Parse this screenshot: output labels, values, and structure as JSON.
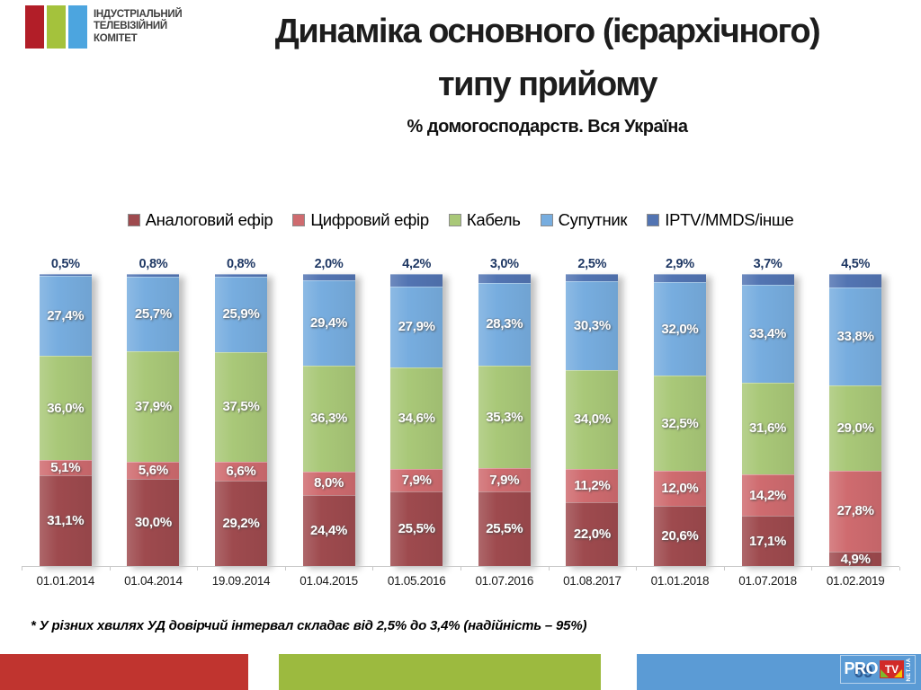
{
  "header": {
    "logo": {
      "text_lines": [
        "ІНДУСТРІАЛЬНИЙ",
        "ТЕЛЕВІЗІЙНИЙ",
        "КОМІТЕТ"
      ],
      "bar_colors": [
        "#B21E28",
        "#A4C23C",
        "#4CA5DF"
      ]
    },
    "title_line1": "Динаміка основного (ієрархічного)",
    "title_line2": "типу прийому",
    "subtitle": "% домогосподарств. Вся Україна"
  },
  "chart_data": {
    "type": "bar",
    "variant": "stacked-100",
    "title": "Динаміка основного (ієрархічного) типу прийому",
    "subtitle": "% домогосподарств. Вся Україна",
    "categories": [
      "01.01.2014",
      "01.04.2014",
      "19.09.2014",
      "01.04.2015",
      "01.05.2016",
      "01.07.2016",
      "01.08.2017",
      "01.01.2018",
      "01.07.2018",
      "01.02.2019"
    ],
    "series": [
      {
        "name": "Аналоговий ефір",
        "color": "#9E4A4E",
        "values": [
          31.1,
          30.0,
          29.2,
          24.4,
          25.5,
          25.5,
          22.0,
          20.6,
          17.1,
          4.9
        ]
      },
      {
        "name": "Цифровий ефір",
        "color": "#CF6B6F",
        "values": [
          5.1,
          5.6,
          6.6,
          8.0,
          7.9,
          7.9,
          11.2,
          12.0,
          14.2,
          27.8
        ]
      },
      {
        "name": "Кабель",
        "color": "#A9C878",
        "values": [
          36.0,
          37.9,
          37.5,
          36.3,
          34.6,
          35.3,
          34.0,
          32.5,
          31.6,
          29.0
        ]
      },
      {
        "name": "Супутник",
        "color": "#77ADDF",
        "values": [
          27.4,
          25.7,
          25.9,
          29.4,
          27.9,
          28.3,
          30.3,
          32.0,
          33.4,
          33.8
        ]
      },
      {
        "name": "IPTV/MMDS/інше",
        "color": "#5274B2",
        "values": [
          0.5,
          0.8,
          0.8,
          2.0,
          4.2,
          3.0,
          2.5,
          2.9,
          3.7,
          4.5
        ]
      }
    ],
    "stack_total": 100,
    "value_suffix": "%",
    "decimal_separator": ",",
    "top_labels_series": "IPTV/MMDS/інше",
    "label_color_inside": "#FFFFFF",
    "label_color_top": "#1F3864",
    "legend_position": "top",
    "grid": false
  },
  "footnote": "* У різних хвилях УД довірчий інтервал складає від 2,5% до 3,4% (надійність – 95%)",
  "footer": {
    "strip_colors": [
      "#C0342F",
      "#9CBA3F",
      "#5B9BD5"
    ],
    "page_number": "69",
    "logo": {
      "pro": "PRO",
      "tv": "TV",
      "domain": "NET.UA"
    }
  }
}
